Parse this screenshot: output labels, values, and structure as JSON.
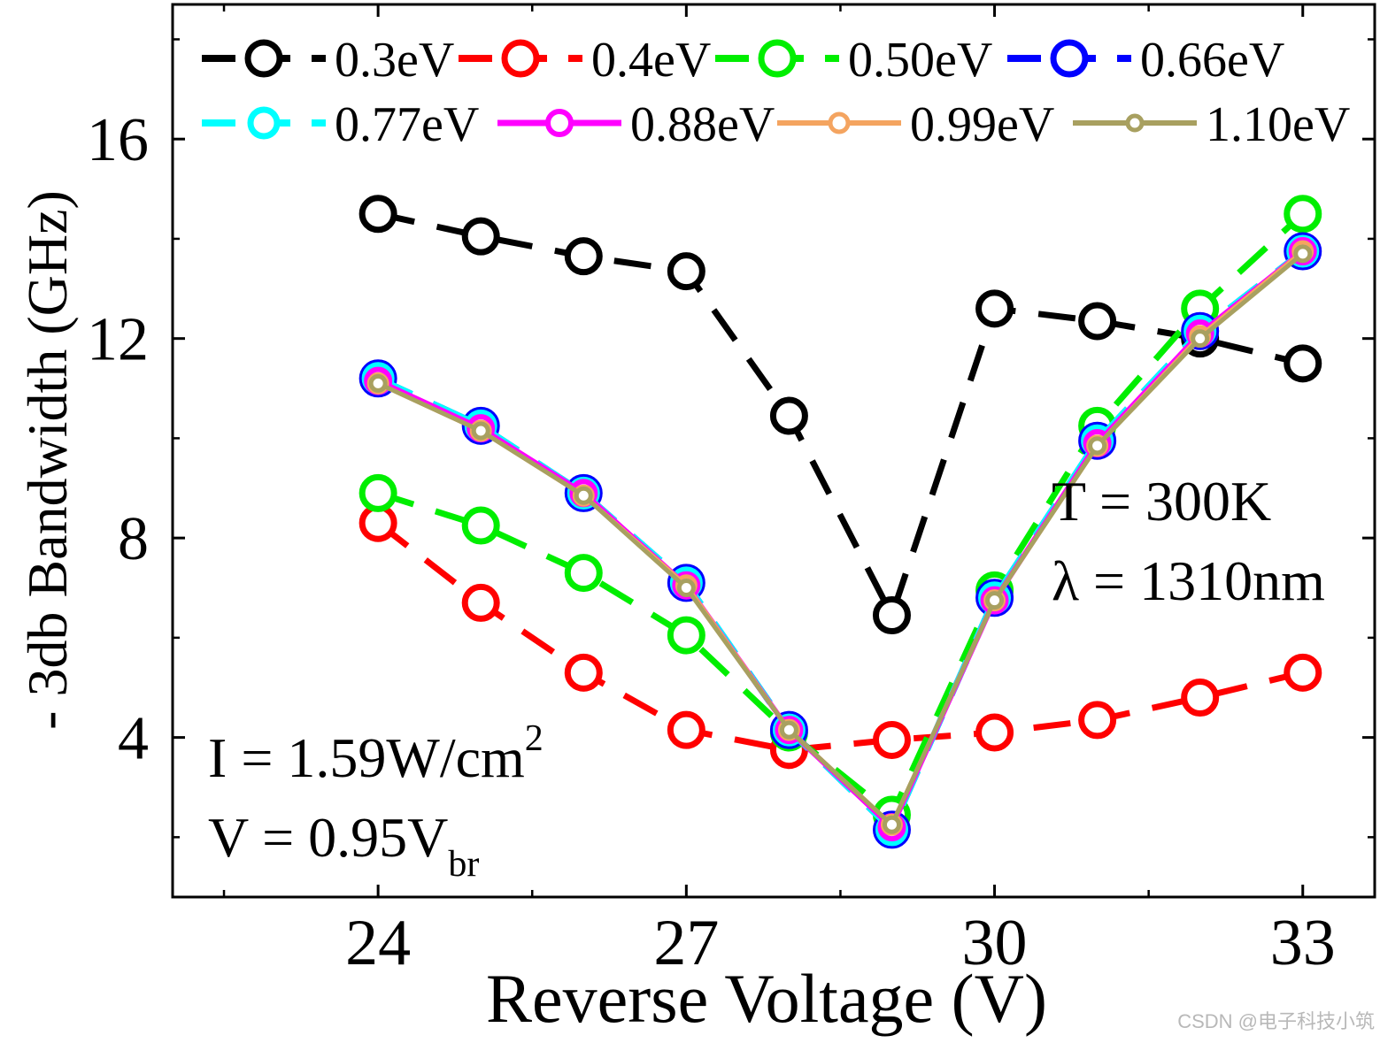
{
  "chart_data": {
    "type": "line",
    "title": "",
    "xlabel": "Reverse Voltage (V)",
    "ylabel": "- 3db Bandwidth (GHz)",
    "xlim": [
      22.0,
      33.7
    ],
    "ylim": [
      0.8,
      18.7
    ],
    "xticks": [
      24,
      27,
      30,
      33
    ],
    "xtick_labels": [
      "24",
      "27",
      "30",
      "33"
    ],
    "yticks": [
      4,
      8,
      12,
      16
    ],
    "ytick_labels": [
      "4",
      "8",
      "12",
      "16"
    ],
    "x": [
      24,
      25,
      26,
      27,
      28,
      29,
      30,
      31,
      32,
      33
    ],
    "legend_position": "top",
    "series": [
      {
        "name": "0.3eV",
        "color": "#000000",
        "values": [
          14.5,
          14.05,
          13.65,
          13.35,
          10.45,
          6.45,
          12.6,
          12.35,
          12.0,
          11.5
        ]
      },
      {
        "name": "0.4eV",
        "color": "#ff0000",
        "values": [
          8.3,
          6.7,
          5.3,
          4.15,
          3.75,
          3.95,
          4.1,
          4.35,
          4.8,
          5.3
        ]
      },
      {
        "name": "0.50eV",
        "color": "#00ee00",
        "values": [
          8.9,
          8.25,
          7.3,
          6.05,
          4.1,
          2.45,
          6.95,
          10.25,
          12.6,
          14.5
        ]
      },
      {
        "name": "0.66eV",
        "color": "#0000ff",
        "values": [
          11.2,
          10.25,
          8.9,
          7.1,
          4.15,
          2.15,
          6.8,
          9.95,
          12.15,
          13.75
        ]
      },
      {
        "name": "0.77eV",
        "color": "#00ffff",
        "values": [
          11.2,
          10.25,
          8.9,
          7.1,
          4.15,
          2.15,
          6.8,
          9.95,
          12.15,
          13.75
        ]
      },
      {
        "name": "0.88eV",
        "color": "#ff00ff",
        "values": [
          11.15,
          10.2,
          8.9,
          7.05,
          4.15,
          2.2,
          6.75,
          9.9,
          12.1,
          13.75
        ]
      },
      {
        "name": "0.99eV",
        "color": "#f4a460",
        "values": [
          11.1,
          10.15,
          8.85,
          7.05,
          4.15,
          2.25,
          6.75,
          9.85,
          12.05,
          13.75
        ]
      },
      {
        "name": "1.10eV",
        "color": "#a8a060",
        "values": [
          11.1,
          10.15,
          8.85,
          7.0,
          4.15,
          2.25,
          6.75,
          9.85,
          12.0,
          13.7
        ]
      }
    ],
    "annotations": {
      "temperature": "T = 300K",
      "wavelength": "λ = 1310nm",
      "intensity": "I = 1.59W/cm",
      "intensity_sup": "2",
      "voltage": "V = 0.95V",
      "voltage_sub": "br"
    }
  },
  "watermark": "CSDN @电子科技小筑"
}
